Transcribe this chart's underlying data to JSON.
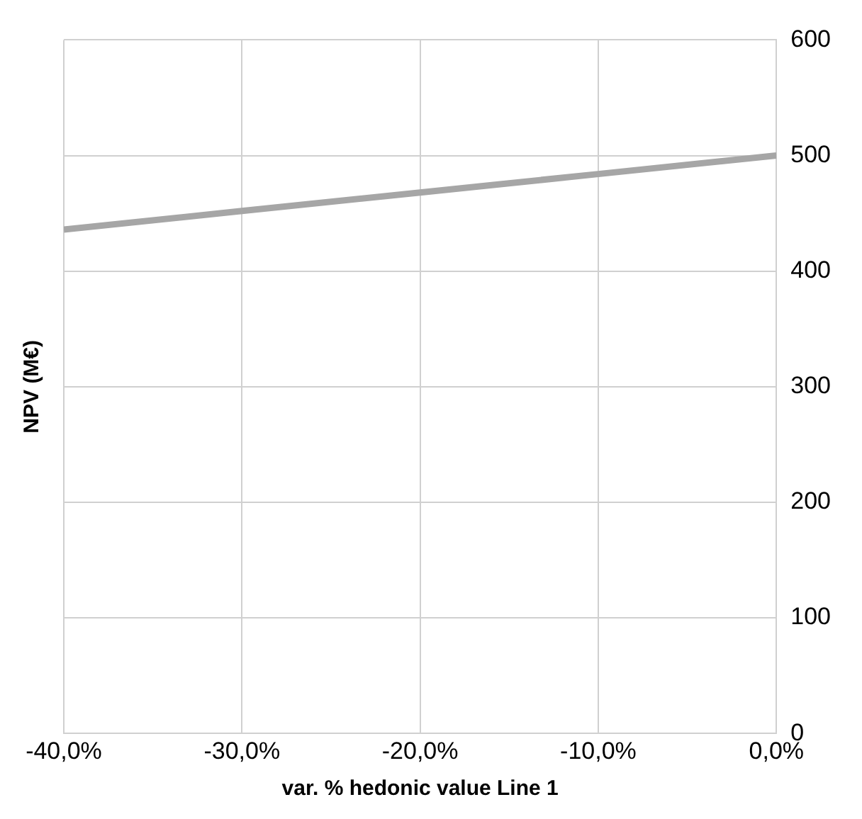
{
  "chart_data": {
    "type": "line",
    "xlabel": "var. % hedonic value Line 1",
    "ylabel": "NPV (M€)",
    "x": [
      -40,
      -30,
      -20,
      -10,
      0
    ],
    "series": [
      {
        "color": "#a6a6a6",
        "values": [
          436,
          452,
          468,
          484,
          500
        ]
      }
    ],
    "xlim": [
      -40,
      0
    ],
    "xticks": [
      {
        "value": -40,
        "label": "-40,0%"
      },
      {
        "value": -30,
        "label": "-30,0%"
      },
      {
        "value": -20,
        "label": "-20,0%"
      },
      {
        "value": -10,
        "label": "-10,0%"
      },
      {
        "value": 0,
        "label": "0,0%"
      }
    ],
    "ylim": [
      0,
      600
    ],
    "yticks": [
      0,
      100,
      200,
      300,
      400,
      500,
      600
    ],
    "grid": true,
    "legend": false,
    "marker": "none",
    "line_style": "solid"
  }
}
